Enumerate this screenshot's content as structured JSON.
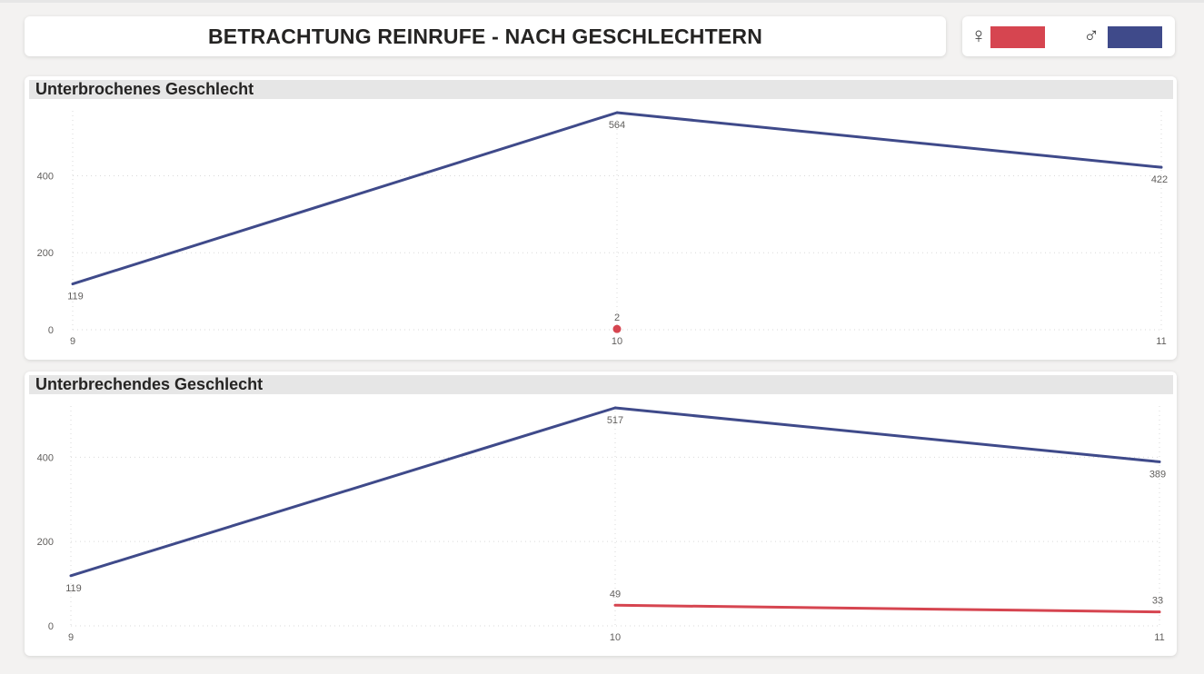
{
  "page_title": "BETRACHTUNG REINRUFE - NACH GESCHLECHTERN",
  "legend": [
    {
      "symbol": "♀",
      "name": "female",
      "color": "#d64550"
    },
    {
      "symbol": "♂",
      "name": "male",
      "color": "#3f4a8a"
    }
  ],
  "chart_data": [
    {
      "type": "line",
      "title": "Unterbrochenes Geschlecht",
      "x": [
        9,
        10,
        11
      ],
      "x_tick_labels": [
        "9",
        "10",
        "11"
      ],
      "y_ticks": [
        0,
        200,
        400
      ],
      "ylim": [
        0,
        564
      ],
      "grid": true,
      "series": [
        {
          "name": "♂",
          "color": "#3f4a8a",
          "x": [
            9,
            10,
            11
          ],
          "values": [
            119,
            564,
            422
          ],
          "labels": [
            "119",
            "564",
            "422"
          ]
        },
        {
          "name": "♀",
          "color": "#d64550",
          "x": [
            10
          ],
          "values": [
            2
          ],
          "labels": [
            "2"
          ]
        }
      ]
    },
    {
      "type": "line",
      "title": "Unterbrechendes Geschlecht",
      "x": [
        9,
        10,
        11
      ],
      "x_tick_labels": [
        "9",
        "10",
        "11"
      ],
      "y_ticks": [
        0,
        200,
        400
      ],
      "ylim": [
        0,
        517
      ],
      "grid": true,
      "series": [
        {
          "name": "♂",
          "color": "#3f4a8a",
          "x": [
            9,
            10,
            11
          ],
          "values": [
            119,
            517,
            389
          ],
          "labels": [
            "119",
            "517",
            "389"
          ]
        },
        {
          "name": "♀",
          "color": "#d64550",
          "x": [
            10,
            11
          ],
          "values": [
            49,
            33
          ],
          "labels": [
            "49",
            "33"
          ]
        }
      ]
    }
  ]
}
